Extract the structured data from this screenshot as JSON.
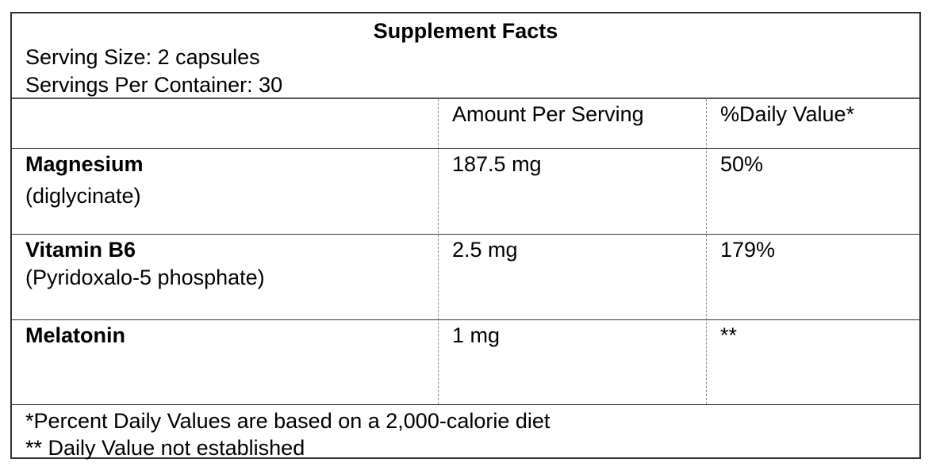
{
  "label": {
    "title": "Supplement Facts",
    "serving_size": "Serving Size: 2 capsules",
    "servings_per_container": "Servings Per Container: 30"
  },
  "table": {
    "columns": [
      "",
      "Amount Per Serving",
      "%Daily Value*"
    ],
    "rows": [
      {
        "name": "Magnesium",
        "sub": "(diglycinate)",
        "amount": "187.5 mg",
        "dv": "50%"
      },
      {
        "name": "Vitamin B6",
        "sub": "(Pyridoxalo-5 phosphate)",
        "amount": "2.5 mg",
        "dv": "179%"
      },
      {
        "name": "Melatonin",
        "sub": "",
        "amount": "1 mg",
        "dv": "**"
      }
    ]
  },
  "footnotes": {
    "percent_note": "*Percent Daily Values are based on a 2,000-calorie diet",
    "not_established": "** Daily Value not established"
  }
}
